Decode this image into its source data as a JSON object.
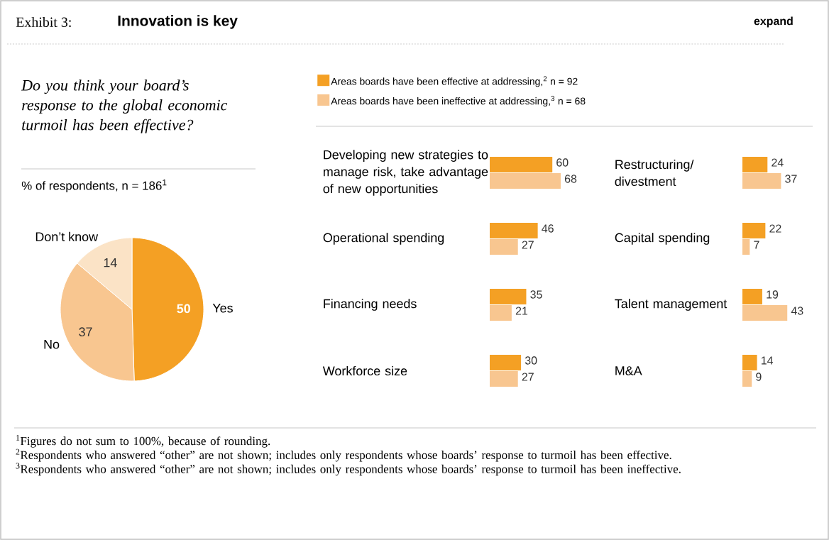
{
  "chart_data": [
    {
      "type": "other",
      "title": "Innovation is key",
      "annotations": [
        "Exhibit 3:",
        "expand",
        "$^{1}$Figures do not sum to 100%, because of rounding.",
        "$^{2}$Respondents who answered “other” are not shown; includes only respondents whose boards’ response to turmoil has been effective.",
        "$^{3}$Respondents who answered “other” are not shown; includes only respondents whose boards’ response to turmoil has been ineffective."
      ]
    },
    {
      "type": "pie",
      "title": "Do you think your board’s response to the global economic turmoil has been effective?",
      "subtitle": "% of respondents, n = 186$^{1}$",
      "categories": [
        "Yes",
        "No",
        "Don’t know"
      ],
      "values": [
        50,
        37,
        14
      ],
      "colors": [
        "#f4a024",
        "#f8c690",
        "#fbe3c6"
      ],
      "data_labels": true
    },
    {
      "type": "bar",
      "orientation": "horizontal",
      "data_labels": true,
      "legend": "top",
      "categories": [
        "Developing new strategies to manage risk, take advantage of new opportunities",
        "Operational spending",
        "Financing needs",
        "Workforce size"
      ],
      "series": [
        {
          "name": "Areas boards have been effective at addressing,$^{2}$ n = 92",
          "color": "#f4a024",
          "values": [
            60,
            46,
            35,
            30
          ]
        },
        {
          "name": "Areas boards have been ineffective at addressing,$^{3}$ n = 68",
          "color": "#f8c690",
          "values": [
            68,
            27,
            21,
            27
          ]
        }
      ]
    },
    {
      "type": "bar",
      "orientation": "horizontal",
      "data_labels": true,
      "categories": [
        "Restructuring/ divestment",
        "Capital spending",
        "Talent management",
        "M&A"
      ],
      "series": [
        {
          "color": "#f4a024",
          "values": [
            24,
            22,
            19,
            14
          ]
        },
        {
          "color": "#f8c690",
          "values": [
            37,
            7,
            43,
            9
          ]
        }
      ]
    }
  ]
}
